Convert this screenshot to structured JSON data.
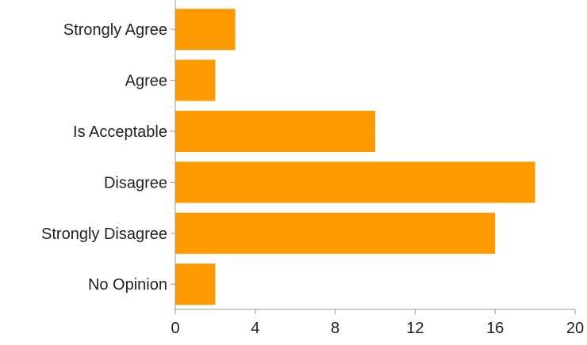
{
  "chart_data": {
    "type": "bar",
    "orientation": "horizontal",
    "categories": [
      "Strongly Agree",
      "Agree",
      "Is Acceptable",
      "Disagree",
      "Strongly Disagree",
      "No Opinion"
    ],
    "values": [
      3,
      2,
      10,
      18,
      16,
      2
    ],
    "xlim": [
      0,
      20
    ],
    "xticks": [
      0,
      4,
      8,
      12,
      16,
      20
    ],
    "title": "",
    "xlabel": "",
    "ylabel": "",
    "grid": false,
    "legend": "none",
    "bar_color": "#ff9900",
    "axis_color": "#999999"
  }
}
